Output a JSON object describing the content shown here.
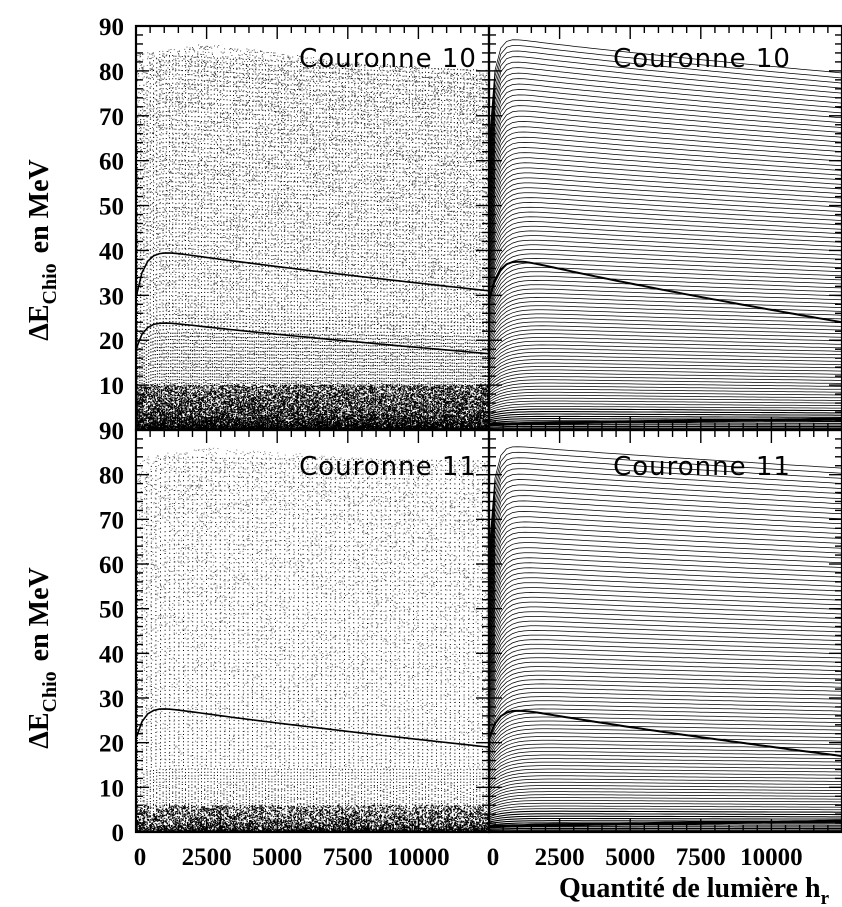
{
  "chart_data": {
    "type": "scatter",
    "layout": "2x2 grid of panels sharing axes",
    "ylabel": {
      "main": "ΔE",
      "subscript": "Chio",
      "suffix": "en MeV"
    },
    "xlabel": {
      "main": "Quantité de lumière h",
      "subscript": "r"
    },
    "xlim": [
      0,
      12500
    ],
    "ylim": [
      0,
      90
    ],
    "x_ticks": [
      "0",
      "2500",
      "5000",
      "7500",
      "10000"
    ],
    "y_ticks_top": [
      "10",
      "20",
      "30",
      "40",
      "50",
      "60",
      "70",
      "80",
      "90"
    ],
    "y_ticks_bottom": [
      "0",
      "10",
      "20",
      "30",
      "40",
      "50",
      "60",
      "70",
      "80",
      "90"
    ],
    "grid": false,
    "style": {
      "point_color": "#000000",
      "background": "#ffffff"
    },
    "panels": [
      {
        "id": "top-left",
        "label": "Couronne 10",
        "kind": "dense-points",
        "upper_envelope": [
          [
            0,
            84
          ],
          [
            2500,
            86
          ],
          [
            5000,
            84
          ],
          [
            7500,
            82
          ],
          [
            10000,
            81
          ],
          [
            12500,
            80
          ]
        ],
        "dark_bands": [
          {
            "y_start": 41,
            "y_end": 31
          },
          {
            "y_start": 25,
            "y_end": 17
          }
        ]
      },
      {
        "id": "top-right",
        "label": "Couronne 10",
        "kind": "lines",
        "upper_envelope": [
          [
            0,
            88
          ],
          [
            12500,
            82
          ]
        ],
        "highlight_line": {
          "y_start": 40,
          "y_end": 24
        }
      },
      {
        "id": "bottom-left",
        "label": "Couronne 11",
        "kind": "sparse-points",
        "upper_envelope": [
          [
            0,
            84
          ],
          [
            2500,
            86
          ],
          [
            5000,
            85
          ],
          [
            7500,
            84
          ],
          [
            10000,
            83
          ],
          [
            12500,
            83
          ]
        ],
        "dark_bands": [
          {
            "y_start": 29,
            "y_end": 19
          }
        ]
      },
      {
        "id": "bottom-right",
        "label": "Couronne 11",
        "kind": "lines",
        "upper_envelope": [
          [
            0,
            87
          ],
          [
            12500,
            84
          ]
        ],
        "highlight_line": {
          "y_start": 29,
          "y_end": 17
        }
      }
    ]
  }
}
